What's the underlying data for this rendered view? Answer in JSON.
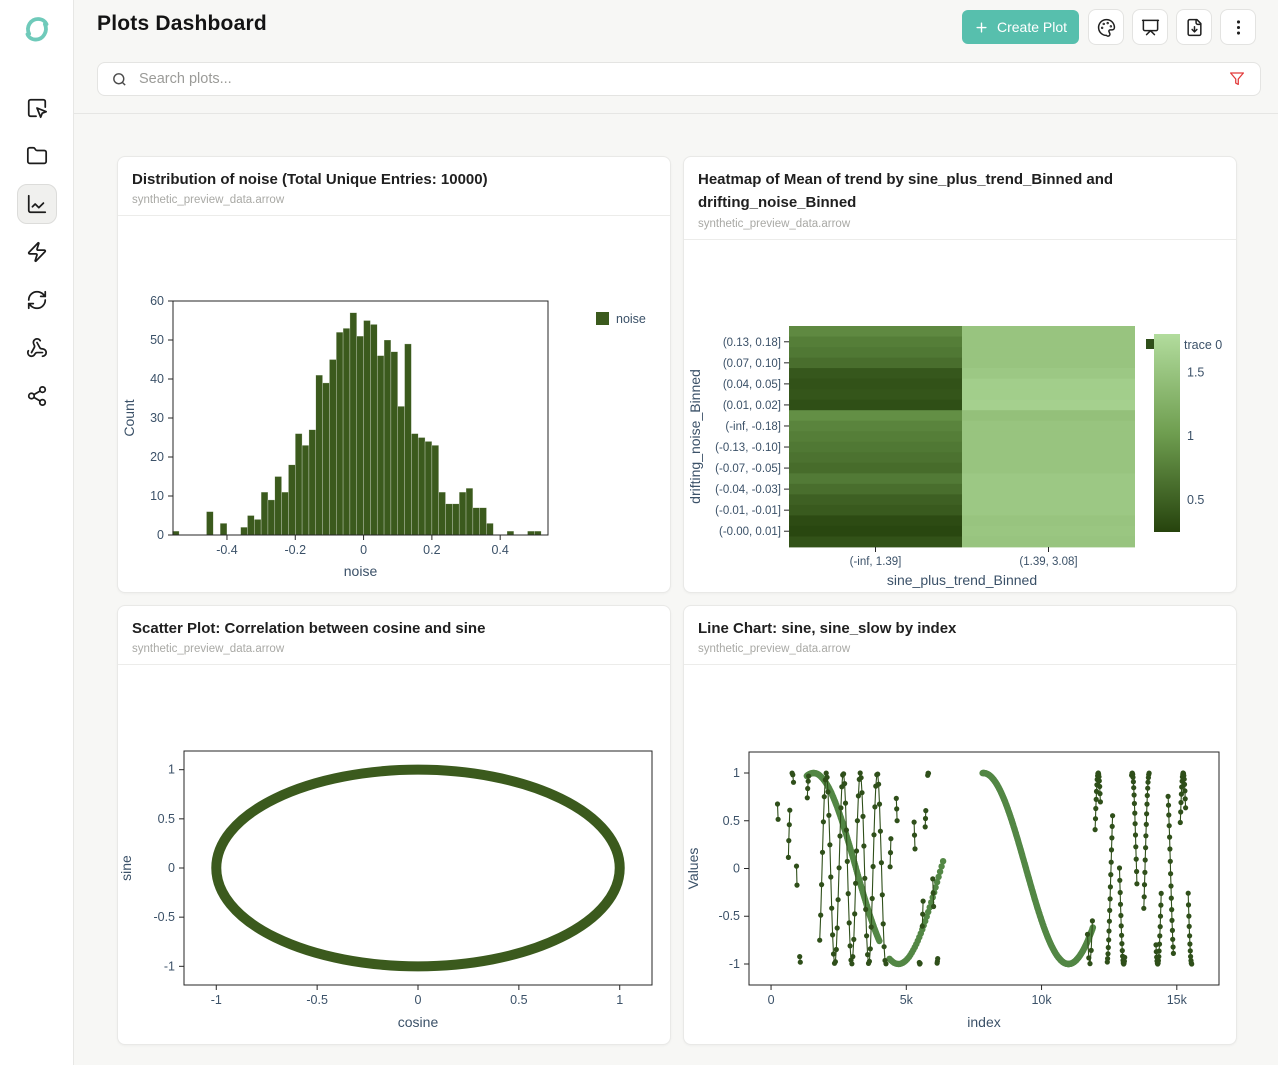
{
  "app": {
    "title": "Plots Dashboard"
  },
  "colors": {
    "accent_teal": "#57bfad",
    "filter_red": "#e23b3b",
    "axis_text": "#3b5168",
    "dark_green": "#3b5a1d",
    "line_dark_green": "#2f4f1a",
    "line_mid_green": "#538745"
  },
  "header": {
    "create_plot_label": "Create Plot",
    "icon_buttons": [
      {
        "name": "palette"
      },
      {
        "name": "presentation"
      },
      {
        "name": "file-download"
      },
      {
        "name": "more-vertical"
      }
    ]
  },
  "search": {
    "placeholder": "Search plots...",
    "value": ""
  },
  "sidebar": {
    "items": [
      {
        "name": "select-tool",
        "icon": "square-mouse-pointer-icon",
        "active": false
      },
      {
        "name": "files",
        "icon": "folder-icon",
        "active": false
      },
      {
        "name": "plots",
        "icon": "chart-line-icon",
        "active": true
      },
      {
        "name": "actions",
        "icon": "zap-icon",
        "active": false
      },
      {
        "name": "sync",
        "icon": "refresh-icon",
        "active": false
      },
      {
        "name": "webhooks",
        "icon": "webhook-icon",
        "active": false
      },
      {
        "name": "share",
        "icon": "share-icon",
        "active": false
      }
    ]
  },
  "cards": [
    {
      "title": "Distribution of noise (Total Unique Entries: 10000)",
      "subtitle": "synthetic_preview_data.arrow"
    },
    {
      "title": "Heatmap of Mean of trend by sine_plus_trend_Binned and drifting_noise_Binned",
      "subtitle": "synthetic_preview_data.arrow"
    },
    {
      "title": "Scatter Plot: Correlation between cosine and sine",
      "subtitle": "synthetic_preview_data.arrow"
    },
    {
      "title": "Line Chart: sine, sine_slow by index",
      "subtitle": "synthetic_preview_data.arrow"
    }
  ],
  "chart_data": [
    {
      "type": "bar",
      "variant": "histogram",
      "title": "Distribution of noise (Total Unique Entries: 10000)",
      "xlabel": "noise",
      "ylabel": "Count",
      "bin_start": -0.56,
      "bin_width": 0.02,
      "values": [
        1,
        0,
        0,
        0,
        0,
        6,
        0,
        3,
        0,
        0,
        2,
        5,
        4,
        11,
        9,
        15,
        11,
        18,
        26,
        23,
        27,
        41,
        39,
        45,
        52,
        53,
        57,
        51,
        55,
        54,
        46,
        50,
        47,
        33,
        49,
        26,
        25,
        24,
        23,
        11,
        8,
        8,
        11,
        12,
        7,
        7,
        3,
        0,
        0,
        1,
        0,
        0,
        1,
        1
      ],
      "xlim": [
        -0.558,
        0.54
      ],
      "ylim": [
        0,
        60
      ],
      "xticks": [
        -0.4,
        -0.2,
        0,
        0.2,
        0.4
      ],
      "yticks": [
        0,
        10,
        20,
        30,
        40,
        50,
        60
      ],
      "bar_color": "#3b5a1d",
      "grid": false,
      "legend": [
        {
          "label": "noise",
          "color": "#3b5a1d"
        }
      ],
      "legend_position": "top-right"
    },
    {
      "type": "heatmap",
      "title": "Heatmap of Mean of trend by sine_plus_trend_Binned and drifting_noise_Binned",
      "xlabel": "sine_plus_trend_Binned",
      "ylabel": "drifting_noise_Binned",
      "x_categories": [
        "(-inf, 1.39]",
        "(1.39, 3.08]"
      ],
      "y_tick_labels": [
        "(0.13, 0.18]",
        "(0.07, 0.10]",
        "(0.04, 0.05]",
        "(0.01, 0.02]",
        "(-inf, -0.18]",
        "(-0.13, -0.10]",
        "(-0.07, -0.05]",
        "(-0.04, -0.03]",
        "(-0.01, -0.01]",
        "(-0.00, 0.01]"
      ],
      "y_label_rows": [
        1,
        3,
        5,
        7,
        9,
        11,
        13,
        15,
        17,
        19
      ],
      "n_rows": 21,
      "series": [
        {
          "name": "(-inf, 1.39]",
          "values": [
            0.85,
            0.75,
            0.7,
            0.62,
            0.42,
            0.38,
            0.4,
            0.35,
            0.9,
            0.8,
            0.75,
            0.7,
            0.65,
            0.6,
            0.72,
            0.62,
            0.5,
            0.45,
            0.32,
            0.28,
            0.38
          ]
        },
        {
          "name": "(1.39, 3.08]",
          "values": [
            1.5,
            1.5,
            1.5,
            1.5,
            1.55,
            1.62,
            1.62,
            1.65,
            1.45,
            1.5,
            1.5,
            1.5,
            1.5,
            1.5,
            1.55,
            1.55,
            1.55,
            1.55,
            1.5,
            1.52,
            1.5
          ]
        }
      ],
      "zmin": 0.25,
      "zmax": 1.8,
      "colorbar_ticks": [
        0.5,
        1,
        1.5
      ],
      "legend_label": "trace 0",
      "colorscale": [
        "#26430d",
        "#6f9e50",
        "#b2dc9d"
      ]
    },
    {
      "type": "scatter",
      "title": "Scatter Plot: Correlation between cosine and sine",
      "xlabel": "cosine",
      "ylabel": "sine",
      "generator": {
        "shape": "unit-circle",
        "points": 720
      },
      "xticks": [
        -1,
        -0.5,
        0,
        0.5,
        1
      ],
      "yticks": [
        -1,
        -0.5,
        0,
        0.5,
        1
      ],
      "xlim": [
        -1.16,
        1.16
      ],
      "ylim": [
        -1.19,
        1.19
      ],
      "marker_color": "#3b5a1d",
      "ring_width": 10
    },
    {
      "type": "line",
      "title": "Line Chart: sine, sine_slow by index",
      "xlabel": "index",
      "ylabel": "Values",
      "xticks": [
        0,
        5000,
        10000,
        15000
      ],
      "xtick_labels": [
        "0",
        "5k",
        "10k",
        "15k"
      ],
      "yticks": [
        -1,
        -0.5,
        0,
        0.5,
        1
      ],
      "xlim": [
        -815,
        16560
      ],
      "ylim": [
        -1.22,
        1.22
      ],
      "series": [
        {
          "name": "sine_slow",
          "color": "#538745",
          "mode": "markers",
          "period": 6283.2,
          "marker_size": 3.2,
          "segments": [
            [
              1320,
              4020,
              22
            ],
            [
              4380,
              6380,
              55
            ],
            [
              7820,
              11900,
              16
            ]
          ]
        },
        {
          "name": "sine",
          "color": "#2f4f1a",
          "mode": "lines+markers",
          "period": 628.32,
          "marker_size": 2.6,
          "segments": [
            [
              240,
              260,
              20
            ],
            [
              640,
              700,
              18
            ],
            [
              780,
              830,
              25
            ],
            [
              940,
              960,
              20
            ],
            [
              1060,
              1080,
              20
            ],
            [
              1340,
              1390,
              16
            ],
            [
              1800,
              4250,
              34
            ],
            [
              4400,
              4430,
              15
            ],
            [
              4630,
              4660,
              15
            ],
            [
              5290,
              5320,
              15
            ],
            [
              5480,
              5520,
              15
            ],
            [
              5590,
              5620,
              15
            ],
            [
              5700,
              5720,
              10
            ],
            [
              5790,
              5820,
              15
            ],
            [
              5980,
              6010,
              15
            ],
            [
              6140,
              6160,
              10
            ],
            [
              11700,
              11920,
              45
            ],
            [
              11980,
              12180,
              13
            ],
            [
              12430,
              12630,
              13
            ],
            [
              12880,
              13080,
              13
            ],
            [
              13330,
              13530,
              13
            ],
            [
              13780,
              13980,
              13
            ],
            [
              14230,
              14430,
              13
            ],
            [
              14680,
              14880,
              13
            ],
            [
              15130,
              15330,
              13
            ],
            [
              15420,
              15560,
              13
            ]
          ]
        }
      ]
    }
  ]
}
